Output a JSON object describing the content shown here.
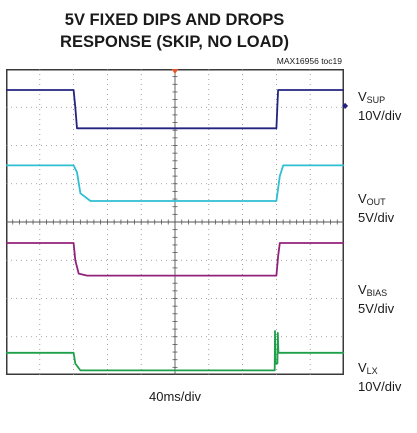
{
  "chart_data": {
    "type": "line",
    "title_line1": "5V FIXED DIPS AND DROPS",
    "title_line2": "RESPONSE (SKIP, NO LOAD)",
    "figure_id": "MAX16956 toc19",
    "timebase": "40ms/div",
    "grid": true,
    "x_divisions": 10,
    "y_divisions": 8,
    "x_unit": "div",
    "y_unit": "div",
    "series": [
      {
        "name_main": "V",
        "name_sub": "SUP",
        "scale": "10V/div",
        "color": "#23247f",
        "x": [
          0,
          2.0,
          2.05,
          2.1,
          8.0,
          8.05,
          10
        ],
        "y": [
          7.45,
          7.45,
          7.0,
          6.45,
          6.45,
          7.45,
          7.45
        ]
      },
      {
        "name_main": "V",
        "name_sub": "OUT",
        "scale": "5V/div",
        "color": "#2fbfd2",
        "x": [
          0,
          2.0,
          2.1,
          2.2,
          2.5,
          8.0,
          8.1,
          8.2,
          10
        ],
        "y": [
          5.48,
          5.48,
          5.3,
          4.75,
          4.55,
          4.55,
          5.2,
          5.48,
          5.48
        ]
      },
      {
        "name_main": "V",
        "name_sub": "BIAS",
        "scale": "5V/div",
        "color": "#922279",
        "x": [
          0,
          2.0,
          2.05,
          2.15,
          2.4,
          8.0,
          8.05,
          8.1,
          10
        ],
        "y": [
          3.45,
          3.45,
          3.0,
          2.65,
          2.6,
          2.6,
          3.1,
          3.45,
          3.45
        ]
      },
      {
        "name_main": "V",
        "name_sub": "LX",
        "scale": "10V/div",
        "color": "#1ea04a",
        "x": [
          0,
          2.0,
          2.05,
          2.2,
          7.95,
          7.96,
          7.97,
          8.03,
          8.04,
          8.06,
          10
        ],
        "y": [
          0.58,
          0.58,
          0.3,
          0.12,
          0.12,
          1.15,
          0.3,
          0.3,
          1.1,
          0.58,
          0.58
        ]
      }
    ]
  }
}
